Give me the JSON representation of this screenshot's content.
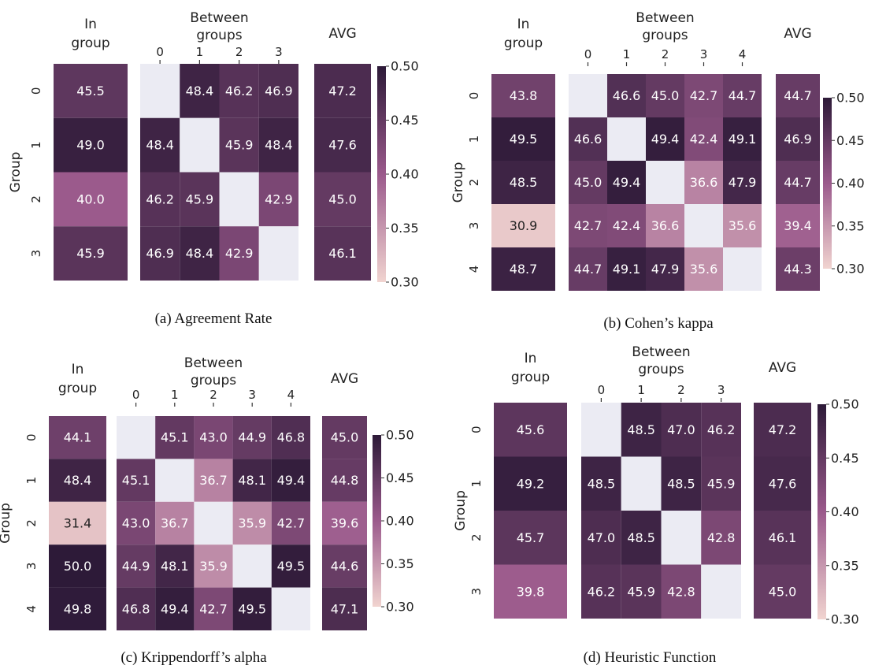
{
  "figure": {
    "colorbar_ticks": [
      "0.30",
      "0.35",
      "0.40",
      "0.45",
      "0.50"
    ],
    "colormap": {
      "low": "#f1d4d0",
      "mid": "#9b5a8c",
      "high": "#2d1a38",
      "missing": "#ebebf3",
      "range": [
        0.3,
        0.5
      ]
    },
    "panels": [
      {
        "caption": "(a) Agreement Rate",
        "in_group_header": [
          "In",
          "group"
        ],
        "between_header": [
          "Between",
          "groups"
        ],
        "avg_header": "AVG",
        "ylabel": "Group",
        "group_labels": [
          "0",
          "1",
          "2",
          "3"
        ],
        "chart_data": {
          "type": "heatmap",
          "title": "Agreement Rate",
          "ylabel": "Group",
          "groups": [
            "0",
            "1",
            "2",
            "3"
          ],
          "in_group": [
            45.5,
            49.0,
            40.0,
            45.9
          ],
          "between": [
            [
              null,
              48.4,
              46.2,
              46.9
            ],
            [
              48.4,
              null,
              45.9,
              48.4
            ],
            [
              46.2,
              45.9,
              null,
              42.9
            ],
            [
              46.9,
              48.4,
              42.9,
              null
            ]
          ],
          "avg": [
            47.2,
            47.6,
            45.0,
            46.1
          ],
          "color_range": [
            0.3,
            0.5
          ]
        }
      },
      {
        "caption": "(b) Cohen’s kappa",
        "in_group_header": [
          "In",
          "group"
        ],
        "between_header": [
          "Between",
          "groups"
        ],
        "avg_header": "AVG",
        "ylabel": "Group",
        "group_labels": [
          "0",
          "1",
          "2",
          "3",
          "4"
        ],
        "chart_data": {
          "type": "heatmap",
          "title": "Cohen’s kappa",
          "ylabel": "Group",
          "groups": [
            "0",
            "1",
            "2",
            "3",
            "4"
          ],
          "in_group": [
            43.8,
            49.5,
            48.5,
            30.9,
            48.7
          ],
          "between": [
            [
              null,
              46.6,
              45.0,
              42.7,
              44.7
            ],
            [
              46.6,
              null,
              49.4,
              42.4,
              49.1
            ],
            [
              45.0,
              49.4,
              null,
              36.6,
              47.9
            ],
            [
              42.7,
              42.4,
              36.6,
              null,
              35.6
            ],
            [
              44.7,
              49.1,
              47.9,
              35.6,
              null
            ]
          ],
          "avg": [
            44.7,
            46.9,
            44.7,
            39.4,
            44.3
          ],
          "color_range": [
            0.3,
            0.5
          ]
        }
      },
      {
        "caption": "(c) Krippendorff’s alpha",
        "in_group_header": [
          "In",
          "group"
        ],
        "between_header": [
          "Between",
          "groups"
        ],
        "avg_header": "AVG",
        "ylabel": "Group",
        "group_labels": [
          "0",
          "1",
          "2",
          "3",
          "4"
        ],
        "chart_data": {
          "type": "heatmap",
          "title": "Krippendorff’s alpha",
          "ylabel": "Group",
          "groups": [
            "0",
            "1",
            "2",
            "3",
            "4"
          ],
          "in_group": [
            44.1,
            48.4,
            31.4,
            50.0,
            49.8
          ],
          "between": [
            [
              null,
              45.1,
              43.0,
              44.9,
              46.8
            ],
            [
              45.1,
              null,
              36.7,
              48.1,
              49.4
            ],
            [
              43.0,
              36.7,
              null,
              35.9,
              42.7
            ],
            [
              44.9,
              48.1,
              35.9,
              null,
              49.5
            ],
            [
              46.8,
              49.4,
              42.7,
              49.5,
              null
            ]
          ],
          "avg": [
            45.0,
            44.8,
            39.6,
            44.6,
            47.1
          ],
          "color_range": [
            0.3,
            0.5
          ]
        }
      },
      {
        "caption": "(d) Heuristic Function",
        "in_group_header": [
          "In",
          "group"
        ],
        "between_header": [
          "Between",
          "groups"
        ],
        "avg_header": "AVG",
        "ylabel": "Group",
        "group_labels": [
          "0",
          "1",
          "2",
          "3"
        ],
        "chart_data": {
          "type": "heatmap",
          "title": "Heuristic Function",
          "ylabel": "Group",
          "groups": [
            "0",
            "1",
            "2",
            "3"
          ],
          "in_group": [
            45.6,
            49.2,
            45.7,
            39.8
          ],
          "between": [
            [
              null,
              48.5,
              47.0,
              46.2
            ],
            [
              48.5,
              null,
              48.5,
              45.9
            ],
            [
              47.0,
              48.5,
              null,
              42.8
            ],
            [
              46.2,
              45.9,
              42.8,
              null
            ]
          ],
          "avg": [
            47.2,
            47.6,
            46.1,
            45.0
          ],
          "color_range": [
            0.3,
            0.5
          ]
        }
      }
    ]
  }
}
